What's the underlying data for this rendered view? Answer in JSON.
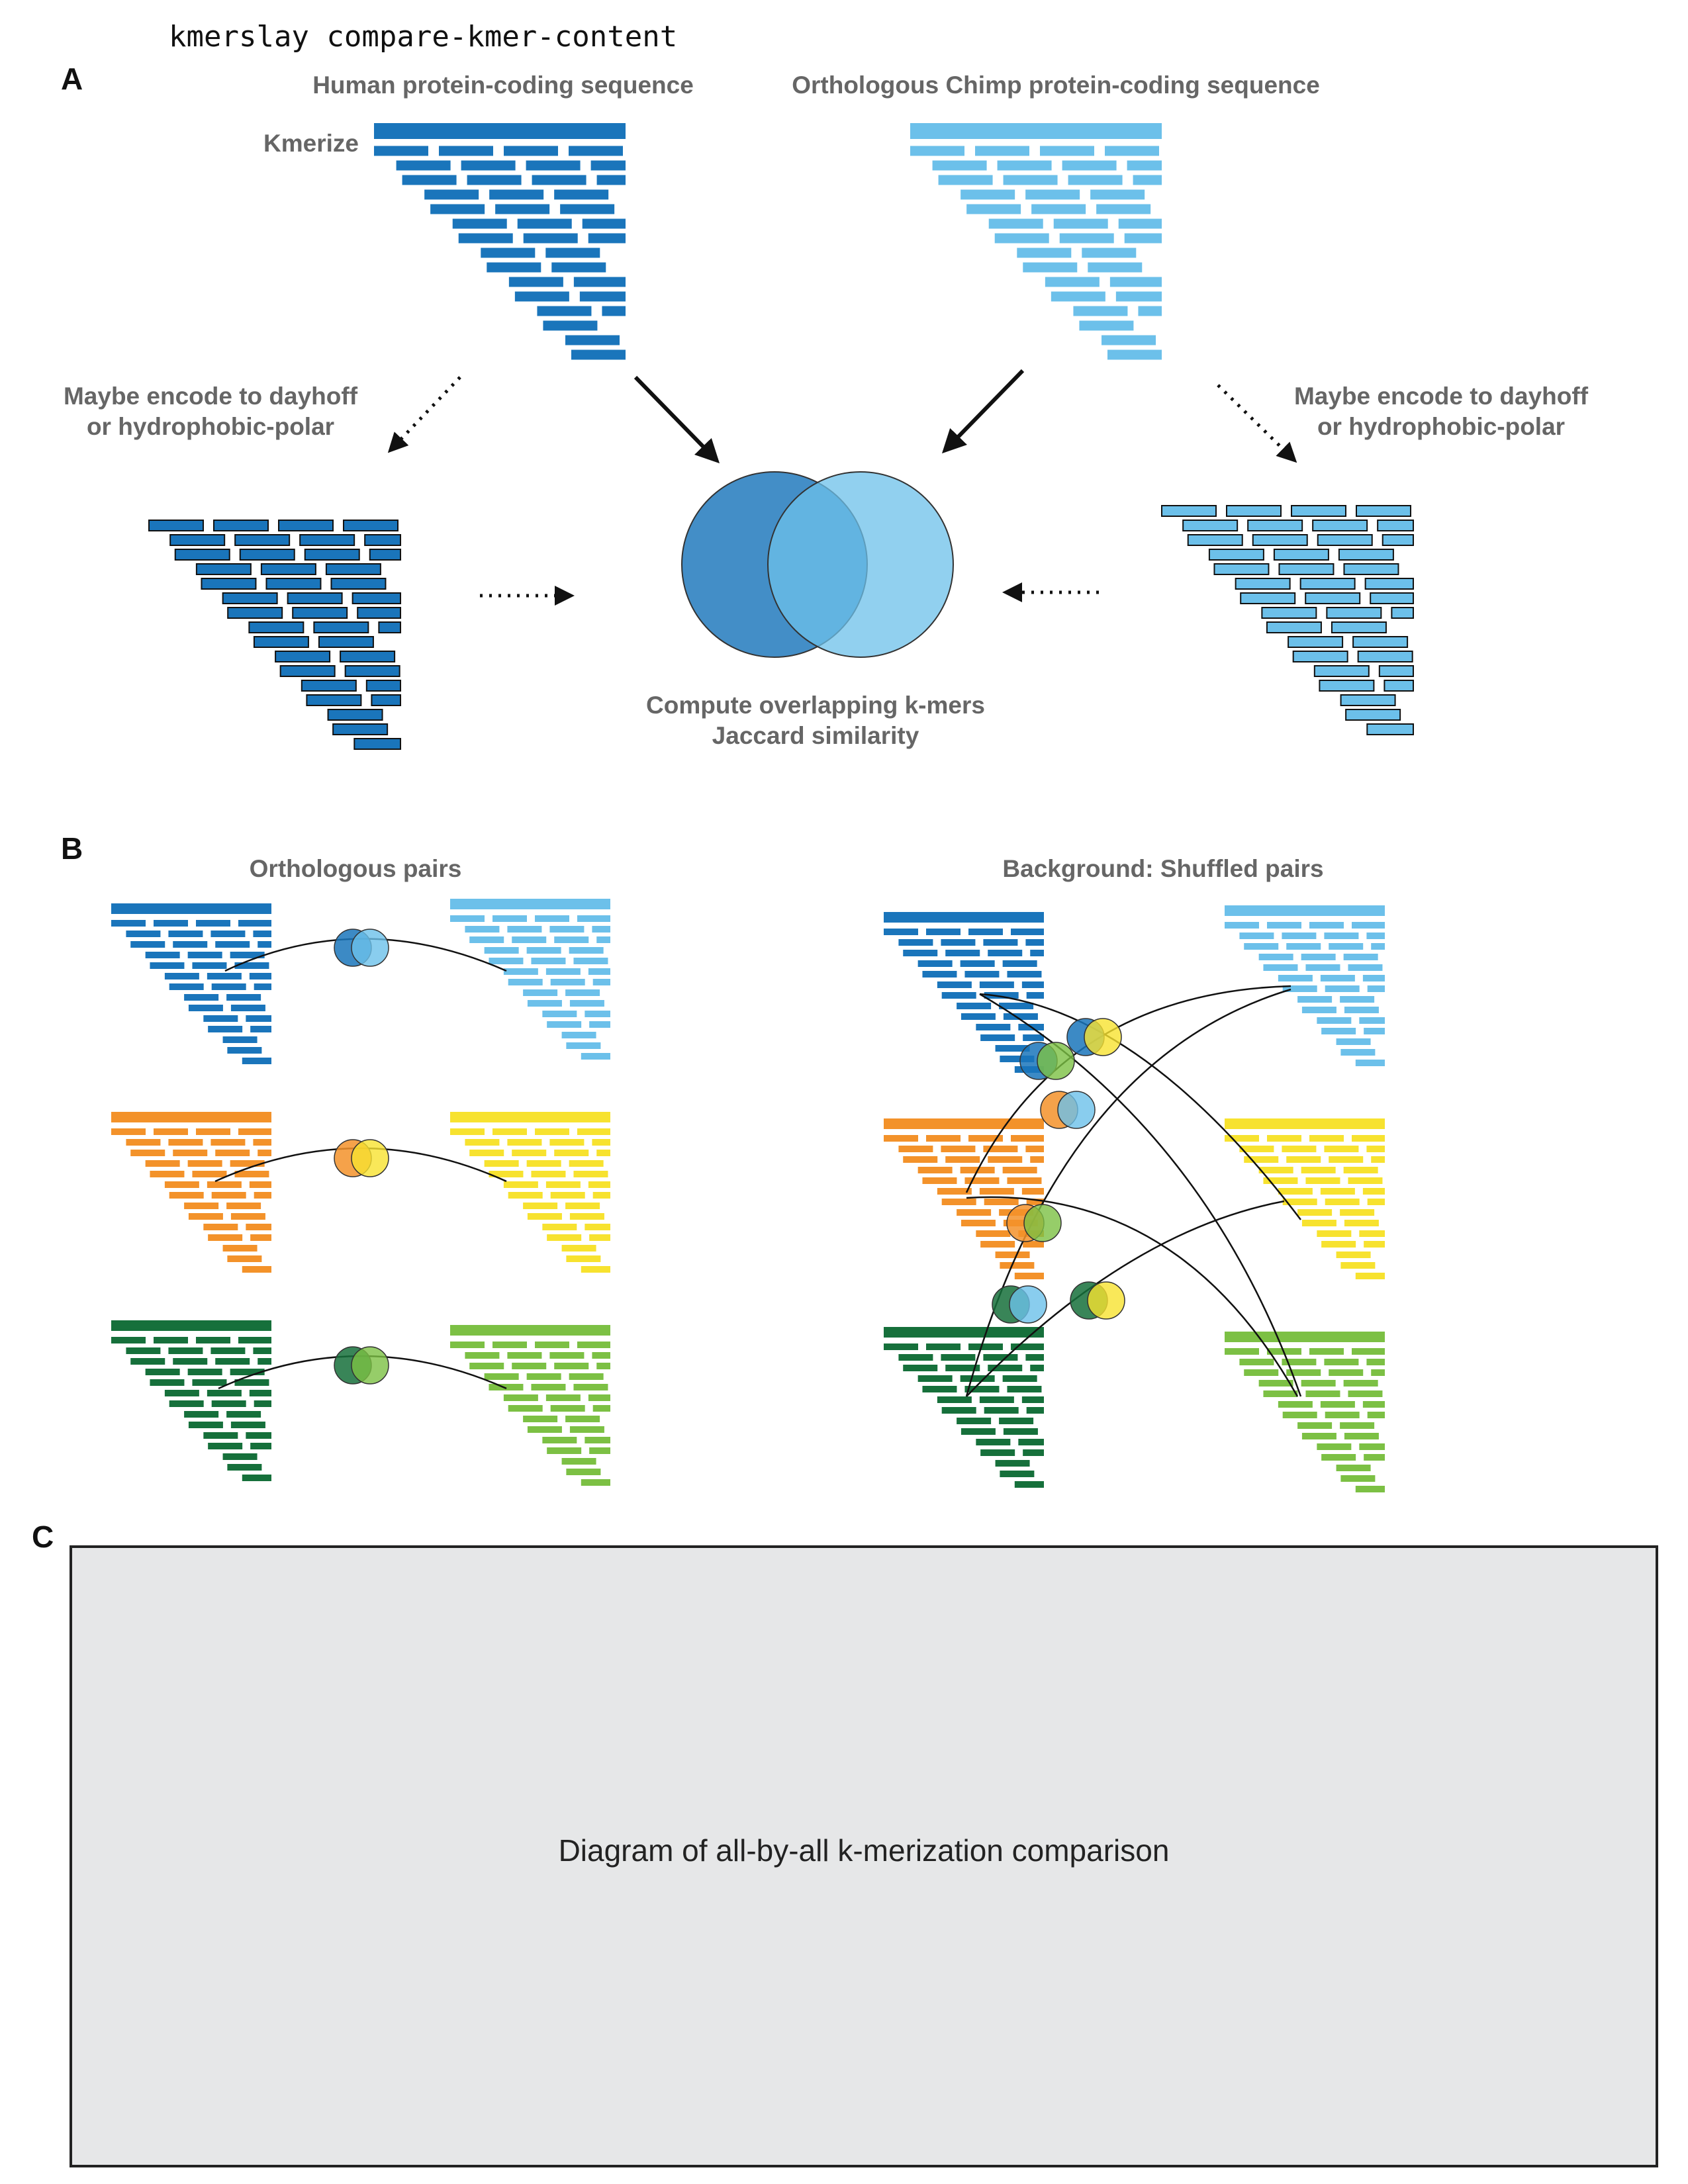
{
  "command": "kmerslay compare-kmer-content",
  "panel_a": {
    "letter": "A",
    "human_label": "Human protein-coding sequence",
    "chimp_label": "Orthologous Chimp protein-coding sequence",
    "kmerize_label": "Kmerize",
    "encode_left": [
      "Maybe encode to dayhoff",
      "or hydrophobic-polar"
    ],
    "encode_right": [
      "Maybe encode to dayhoff",
      "or hydrophobic-polar"
    ],
    "compute": [
      "Compute overlapping k-mers",
      "Jaccard similarity"
    ]
  },
  "panel_b": {
    "letter": "B",
    "ortho_label": "Orthologous pairs",
    "shuffled_label": "Background: Shuffled pairs"
  },
  "panel_c": {
    "letter": "C",
    "placeholder": "Diagram of all-by-all k-merization comparison"
  },
  "colors": {
    "human_blue": "#1a75bb",
    "chimp_blue": "#6cc0ea",
    "orange": "#f3922a",
    "yellow": "#f7e22f",
    "dark_green": "#16703b",
    "light_green": "#7cc044",
    "placeholder_bg": "#e6e7e8"
  }
}
